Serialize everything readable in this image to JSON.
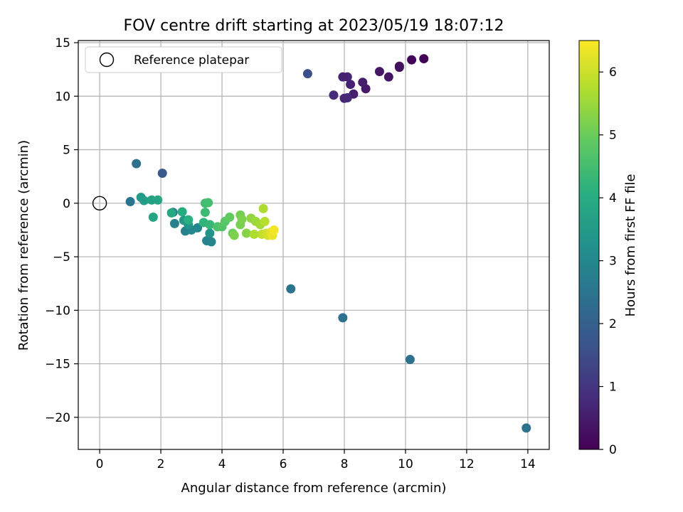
{
  "chart_data": {
    "type": "scatter",
    "title": "FOV centre drift starting at 2023/05/19 18:07:12",
    "xlabel": "Angular distance from reference (arcmin)",
    "ylabel": "Rotation from reference (arcmin)",
    "xlim": [
      -0.7,
      14.7
    ],
    "ylim": [
      -23,
      15.2
    ],
    "xticks": [
      0,
      2,
      4,
      6,
      8,
      10,
      12,
      14
    ],
    "yticks": [
      15,
      10,
      5,
      0,
      -5,
      -10,
      -15,
      -20
    ],
    "grid": true,
    "legend": {
      "position": "top-left",
      "entries": [
        "Reference platepar"
      ]
    },
    "reference": {
      "x": 0,
      "y": 0,
      "label": "Reference platepar"
    },
    "colorbar": {
      "label": "Hours from first FF file",
      "range": [
        0,
        6.5
      ],
      "ticks": [
        0,
        1,
        2,
        3,
        4,
        5,
        6
      ],
      "colormap": "viridis"
    },
    "points": [
      {
        "x": 10.6,
        "y": 13.5,
        "h": 0.05
      },
      {
        "x": 10.2,
        "y": 13.4,
        "h": 0.1
      },
      {
        "x": 9.8,
        "y": 12.7,
        "h": 0.2
      },
      {
        "x": 9.8,
        "y": 12.8,
        "h": 0.25
      },
      {
        "x": 9.45,
        "y": 11.8,
        "h": 0.35
      },
      {
        "x": 9.15,
        "y": 12.3,
        "h": 0.4
      },
      {
        "x": 8.7,
        "y": 10.7,
        "h": 0.45
      },
      {
        "x": 8.6,
        "y": 11.3,
        "h": 0.5
      },
      {
        "x": 8.3,
        "y": 10.2,
        "h": 0.55
      },
      {
        "x": 8.2,
        "y": 11.1,
        "h": 0.6
      },
      {
        "x": 8.1,
        "y": 11.8,
        "h": 0.65
      },
      {
        "x": 7.95,
        "y": 11.8,
        "h": 0.6
      },
      {
        "x": 8.0,
        "y": 9.8,
        "h": 0.7
      },
      {
        "x": 8.1,
        "y": 9.85,
        "h": 0.75
      },
      {
        "x": 7.65,
        "y": 10.1,
        "h": 0.8
      },
      {
        "x": 6.8,
        "y": 12.1,
        "h": 1.6
      },
      {
        "x": 2.05,
        "y": 2.8,
        "h": 1.8
      },
      {
        "x": 1.2,
        "y": 3.7,
        "h": 2.4
      },
      {
        "x": 1.0,
        "y": 0.15,
        "h": 2.5
      },
      {
        "x": 6.25,
        "y": -8.0,
        "h": 2.5
      },
      {
        "x": 7.95,
        "y": -10.7,
        "h": 2.45
      },
      {
        "x": 10.15,
        "y": -14.6,
        "h": 2.4
      },
      {
        "x": 13.95,
        "y": -21.0,
        "h": 2.4
      },
      {
        "x": 2.4,
        "y": -0.85,
        "h": 2.7
      },
      {
        "x": 2.45,
        "y": -1.9,
        "h": 2.8
      },
      {
        "x": 2.8,
        "y": -2.6,
        "h": 2.85
      },
      {
        "x": 3.0,
        "y": -2.5,
        "h": 2.95
      },
      {
        "x": 3.2,
        "y": -2.3,
        "h": 3.0
      },
      {
        "x": 3.5,
        "y": -3.5,
        "h": 2.9
      },
      {
        "x": 3.65,
        "y": -3.6,
        "h": 2.95
      },
      {
        "x": 3.6,
        "y": -2.8,
        "h": 3.3
      },
      {
        "x": 2.9,
        "y": -2.0,
        "h": 3.4
      },
      {
        "x": 2.75,
        "y": -1.6,
        "h": 3.5
      },
      {
        "x": 1.35,
        "y": 0.55,
        "h": 3.5
      },
      {
        "x": 1.45,
        "y": 0.25,
        "h": 3.6
      },
      {
        "x": 1.7,
        "y": 0.3,
        "h": 3.7
      },
      {
        "x": 1.9,
        "y": 0.3,
        "h": 3.8
      },
      {
        "x": 1.75,
        "y": -1.3,
        "h": 3.8
      },
      {
        "x": 2.35,
        "y": -0.9,
        "h": 3.9
      },
      {
        "x": 2.7,
        "y": -0.8,
        "h": 4.0
      },
      {
        "x": 2.9,
        "y": -1.55,
        "h": 4.1
      },
      {
        "x": 3.4,
        "y": -1.8,
        "h": 4.2
      },
      {
        "x": 3.6,
        "y": -2.0,
        "h": 4.3
      },
      {
        "x": 3.45,
        "y": -0.85,
        "h": 4.4
      },
      {
        "x": 3.45,
        "y": 0.0,
        "h": 4.45
      },
      {
        "x": 3.55,
        "y": 0.05,
        "h": 4.5
      },
      {
        "x": 3.85,
        "y": -2.2,
        "h": 4.6
      },
      {
        "x": 4.0,
        "y": -2.2,
        "h": 4.7
      },
      {
        "x": 4.1,
        "y": -1.7,
        "h": 4.8
      },
      {
        "x": 4.25,
        "y": -1.3,
        "h": 4.9
      },
      {
        "x": 4.35,
        "y": -2.8,
        "h": 5.0
      },
      {
        "x": 4.6,
        "y": -1.1,
        "h": 5.1
      },
      {
        "x": 4.6,
        "y": -2.0,
        "h": 5.15
      },
      {
        "x": 4.65,
        "y": -1.5,
        "h": 5.2
      },
      {
        "x": 4.8,
        "y": -2.8,
        "h": 5.3
      },
      {
        "x": 4.95,
        "y": -1.4,
        "h": 5.4
      },
      {
        "x": 5.1,
        "y": -1.7,
        "h": 5.5
      },
      {
        "x": 5.25,
        "y": -2.0,
        "h": 5.6
      },
      {
        "x": 5.35,
        "y": -0.5,
        "h": 5.7
      },
      {
        "x": 5.4,
        "y": -1.7,
        "h": 5.8
      },
      {
        "x": 5.3,
        "y": -2.9,
        "h": 5.9
      },
      {
        "x": 5.45,
        "y": -2.8,
        "h": 6.0
      },
      {
        "x": 5.5,
        "y": -3.0,
        "h": 6.1
      },
      {
        "x": 5.6,
        "y": -2.7,
        "h": 6.2
      },
      {
        "x": 5.65,
        "y": -3.0,
        "h": 6.3
      },
      {
        "x": 5.7,
        "y": -2.5,
        "h": 6.4
      },
      {
        "x": 5.05,
        "y": -2.9,
        "h": 5.7
      },
      {
        "x": 4.4,
        "y": -3.0,
        "h": 5.2
      }
    ]
  }
}
